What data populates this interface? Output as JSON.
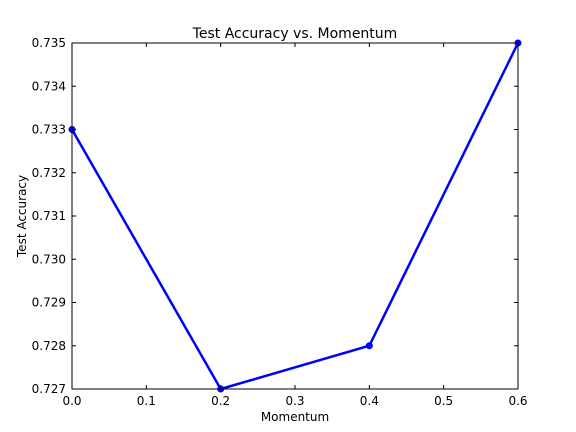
{
  "chart_data": {
    "type": "line",
    "title": "Test Accuracy vs. Momentum",
    "xlabel": "Momentum",
    "ylabel": "Test Accuracy",
    "xlim": [
      0.0,
      0.6
    ],
    "ylim": [
      0.727,
      0.735
    ],
    "xticks": [
      "0.0",
      "0.1",
      "0.2",
      "0.3",
      "0.4",
      "0.5",
      "0.6"
    ],
    "yticks": [
      "0.727",
      "0.728",
      "0.729",
      "0.730",
      "0.731",
      "0.732",
      "0.733",
      "0.734",
      "0.735"
    ],
    "grid": false,
    "series": [
      {
        "x": [
          0.0,
          0.2,
          0.4,
          0.6
        ],
        "y": [
          0.733,
          0.727,
          0.728,
          0.735
        ],
        "color": "#0000ff",
        "marker": "circle"
      }
    ]
  }
}
